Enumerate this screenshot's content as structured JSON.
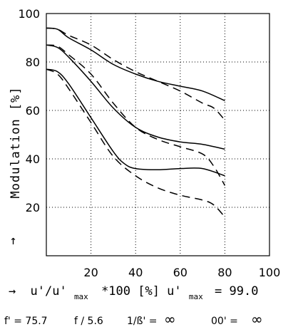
{
  "chart_data": {
    "type": "line",
    "ylabel": "Modulation [%]",
    "xlabel": {
      "arrow": "→",
      "text": "u'/u'max *100 [%] u'max = 99.0",
      "var1": "u'/u'",
      "sub1": "max",
      "mid": "*100 [%] u'",
      "sub2": "max",
      "tail": "= 99.0"
    },
    "y_arrow": "↑",
    "xlim": [
      0,
      100
    ],
    "ylim": [
      0,
      100
    ],
    "x_ticks": [
      "20",
      "40",
      "60",
      "80",
      "100"
    ],
    "y_ticks": [
      "20",
      "40",
      "60",
      "80",
      "100"
    ],
    "grid": true,
    "series": [
      {
        "style": "solid",
        "x": [
          0,
          5,
          10,
          20,
          30,
          40,
          50,
          60,
          70,
          80
        ],
        "y": [
          94,
          93.5,
          90,
          85,
          79,
          75,
          72,
          70,
          68,
          64
        ]
      },
      {
        "style": "dashed",
        "x": [
          0,
          5,
          10,
          20,
          30,
          40,
          50,
          60,
          70,
          75,
          80
        ],
        "y": [
          94,
          93.5,
          91,
          87,
          81,
          76,
          72,
          68,
          63,
          61,
          56
        ]
      },
      {
        "style": "solid",
        "x": [
          0,
          5,
          10,
          20,
          30,
          40,
          50,
          60,
          70,
          80
        ],
        "y": [
          87,
          86,
          82,
          72,
          61,
          53,
          49,
          47,
          46,
          44
        ]
      },
      {
        "style": "dashed",
        "x": [
          0,
          5,
          10,
          20,
          30,
          40,
          50,
          60,
          70,
          75,
          80
        ],
        "y": [
          87,
          86.5,
          83,
          75,
          63,
          53,
          48,
          45,
          42,
          37,
          29
        ]
      },
      {
        "style": "solid",
        "x": [
          0,
          5,
          10,
          20,
          30,
          35,
          40,
          50,
          60,
          70,
          80
        ],
        "y": [
          77,
          76,
          71,
          57,
          43,
          38,
          36,
          35.5,
          36,
          36,
          33
        ]
      },
      {
        "style": "dashed",
        "x": [
          0,
          5,
          10,
          20,
          30,
          40,
          50,
          60,
          70,
          75,
          80
        ],
        "y": [
          77,
          75,
          69,
          55,
          41,
          33,
          28,
          25,
          23,
          21,
          16
        ]
      }
    ],
    "footer": [
      {
        "text": "f' = 75.7"
      },
      {
        "text": "f / 5.6"
      },
      {
        "text": "1/ß' ="
      },
      {
        "text": "∞"
      },
      {
        "text": "00' ="
      },
      {
        "text": "∞"
      }
    ]
  }
}
